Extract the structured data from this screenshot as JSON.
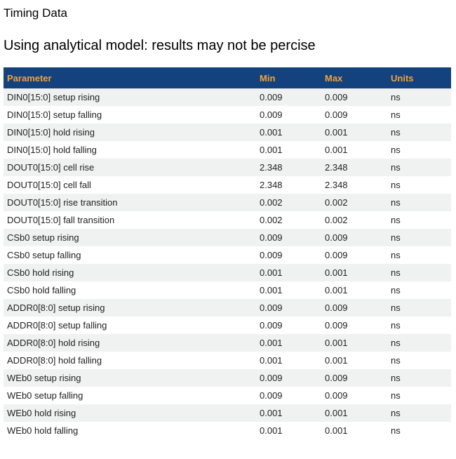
{
  "page": {
    "title": "Timing Data",
    "subtitle": "Using analytical model: results may not be percise"
  },
  "colors": {
    "header_bg": "#14427E",
    "header_text": "#F0A33C",
    "row_alt_bg": "#F0F1F1",
    "body_text": "#222222"
  },
  "table": {
    "columns": [
      "Parameter",
      "Min",
      "Max",
      "Units"
    ],
    "rows": [
      {
        "parameter": "DIN0[15:0] setup rising",
        "min": "0.009",
        "max": "0.009",
        "units": "ns"
      },
      {
        "parameter": "DIN0[15:0] setup falling",
        "min": "0.009",
        "max": "0.009",
        "units": "ns"
      },
      {
        "parameter": "DIN0[15:0] hold rising",
        "min": "0.001",
        "max": "0.001",
        "units": "ns"
      },
      {
        "parameter": "DIN0[15:0] hold falling",
        "min": "0.001",
        "max": "0.001",
        "units": "ns"
      },
      {
        "parameter": "DOUT0[15:0] cell rise",
        "min": "2.348",
        "max": "2.348",
        "units": "ns"
      },
      {
        "parameter": "DOUT0[15:0] cell fall",
        "min": "2.348",
        "max": "2.348",
        "units": "ns"
      },
      {
        "parameter": "DOUT0[15:0] rise transition",
        "min": "0.002",
        "max": "0.002",
        "units": "ns"
      },
      {
        "parameter": "DOUT0[15:0] fall transition",
        "min": "0.002",
        "max": "0.002",
        "units": "ns"
      },
      {
        "parameter": "CSb0 setup rising",
        "min": "0.009",
        "max": "0.009",
        "units": "ns"
      },
      {
        "parameter": "CSb0 setup falling",
        "min": "0.009",
        "max": "0.009",
        "units": "ns"
      },
      {
        "parameter": "CSb0 hold rising",
        "min": "0.001",
        "max": "0.001",
        "units": "ns"
      },
      {
        "parameter": "CSb0 hold falling",
        "min": "0.001",
        "max": "0.001",
        "units": "ns"
      },
      {
        "parameter": "ADDR0[8:0] setup rising",
        "min": "0.009",
        "max": "0.009",
        "units": "ns"
      },
      {
        "parameter": "ADDR0[8:0] setup falling",
        "min": "0.009",
        "max": "0.009",
        "units": "ns"
      },
      {
        "parameter": "ADDR0[8:0] hold rising",
        "min": "0.001",
        "max": "0.001",
        "units": "ns"
      },
      {
        "parameter": "ADDR0[8:0] hold falling",
        "min": "0.001",
        "max": "0.001",
        "units": "ns"
      },
      {
        "parameter": "WEb0 setup rising",
        "min": "0.009",
        "max": "0.009",
        "units": "ns"
      },
      {
        "parameter": "WEb0 setup falling",
        "min": "0.009",
        "max": "0.009",
        "units": "ns"
      },
      {
        "parameter": "WEb0 hold rising",
        "min": "0.001",
        "max": "0.001",
        "units": "ns"
      },
      {
        "parameter": "WEb0 hold falling",
        "min": "0.001",
        "max": "0.001",
        "units": "ns"
      }
    ]
  }
}
